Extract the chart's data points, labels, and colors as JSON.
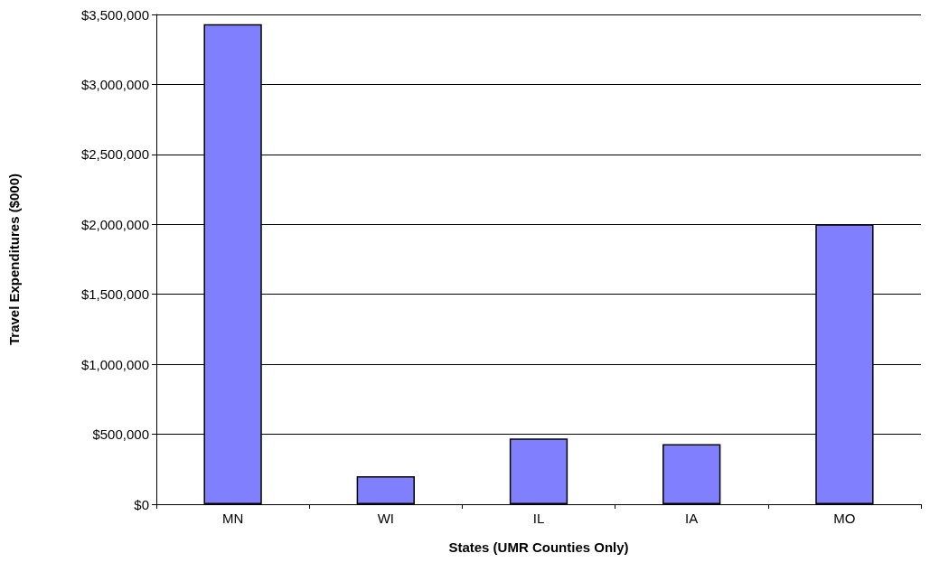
{
  "chart_data": {
    "type": "bar",
    "xlabel": "States (UMR Counties Only)",
    "ylabel": "Travel Expenditures ($000)",
    "categories": [
      "MN",
      "WI",
      "IL",
      "IA",
      "MO"
    ],
    "values": [
      3430000,
      200000,
      470000,
      430000,
      2000000
    ],
    "color": "#8080ff",
    "ylim": [
      0,
      3500000
    ],
    "yticks": [
      {
        "value": 0,
        "label": "$0"
      },
      {
        "value": 500000,
        "label": "$500,000"
      },
      {
        "value": 1000000,
        "label": "$1,000,000"
      },
      {
        "value": 1500000,
        "label": "$1,500,000"
      },
      {
        "value": 2000000,
        "label": "$2,000,000"
      },
      {
        "value": 2500000,
        "label": "$2,500,000"
      },
      {
        "value": 3000000,
        "label": "$3,000,000"
      },
      {
        "value": 3500000,
        "label": "$3,500,000"
      }
    ],
    "grid": "y"
  }
}
